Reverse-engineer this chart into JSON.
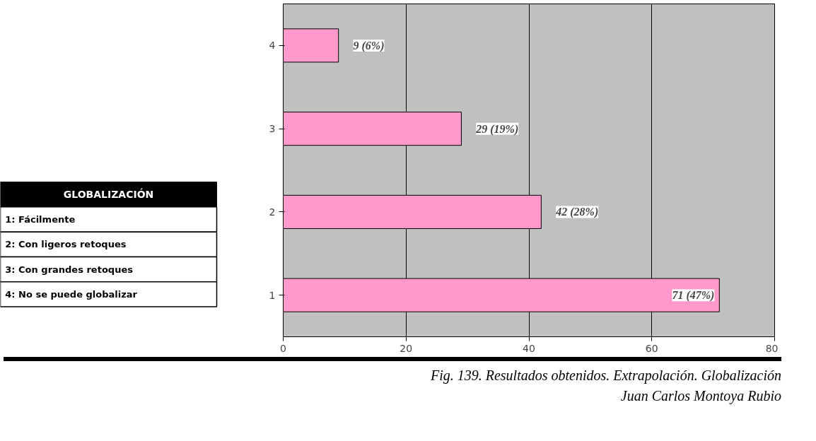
{
  "chart_data": {
    "type": "bar",
    "orientation": "horizontal",
    "categories": [
      "4",
      "3",
      "2",
      "1"
    ],
    "values": [
      9,
      29,
      42,
      71
    ],
    "value_labels": [
      "9 (6%)",
      "29 (19%)",
      "42 (28%)",
      "71 (47%)"
    ],
    "color": "#ff99cc",
    "xlim": [
      0,
      80
    ],
    "xticks": [
      0,
      20,
      40,
      60,
      80
    ],
    "grid": "x",
    "legend_title": "GLOBALIZACIÓN",
    "annotations": [
      "1: Fácilmente",
      "2: Con ligeros retoques",
      "3: Con grandes retoques",
      "4: No se puede globalizar",
      "Fig. 139. Resultados obtenidos. Extrapolación. Globalización",
      "Juan Carlos Montoya Rubio"
    ]
  }
}
